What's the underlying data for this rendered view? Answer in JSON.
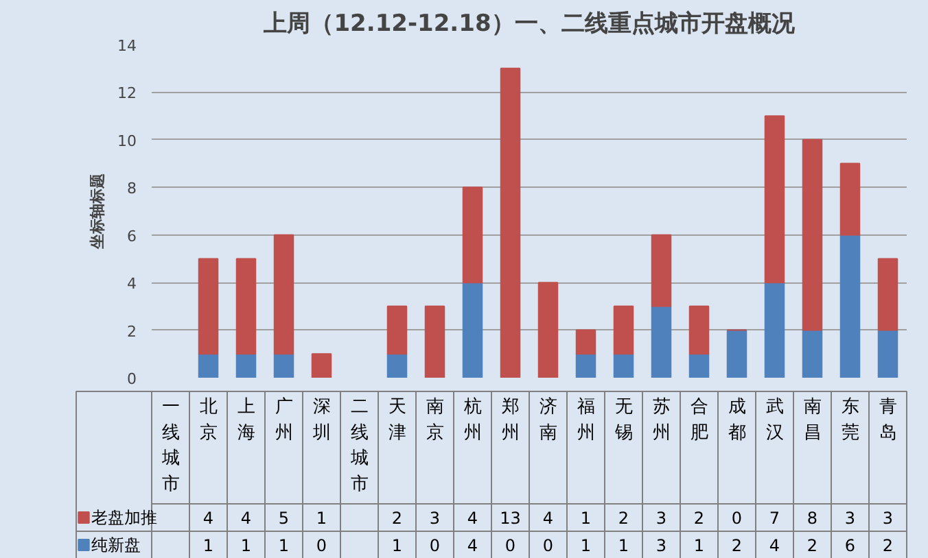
{
  "chart_data": {
    "type": "bar",
    "title": "上周（12.12-12.18）一、二线重点城市开盘概况",
    "ylabel": "坐标轴标题",
    "categories": [
      "一线城市",
      "北京",
      "上海",
      "广州",
      "深圳",
      "二线城市",
      "天津",
      "南京",
      "杭州",
      "郑州",
      "济南",
      "福州",
      "无锡",
      "苏州",
      "合肥",
      "成都",
      "武汉",
      "南昌",
      "东莞",
      "青岛"
    ],
    "stacked": true,
    "series": [
      {
        "name": "纯新盘",
        "color": "#4f81bd",
        "values": [
          null,
          1,
          1,
          1,
          0,
          null,
          1,
          0,
          4,
          0,
          0,
          1,
          1,
          3,
          1,
          2,
          4,
          2,
          6,
          2
        ]
      },
      {
        "name": "老盘加推",
        "color": "#c0504d",
        "values": [
          null,
          4,
          4,
          5,
          1,
          null,
          2,
          3,
          4,
          13,
          4,
          1,
          2,
          3,
          2,
          0,
          7,
          8,
          3,
          3
        ]
      }
    ],
    "ylim": [
      0,
      14
    ],
    "yticks": [
      0,
      2,
      4,
      6,
      8,
      10,
      12,
      14
    ],
    "grid": "y",
    "legend": "bottom",
    "data_labels": true
  }
}
